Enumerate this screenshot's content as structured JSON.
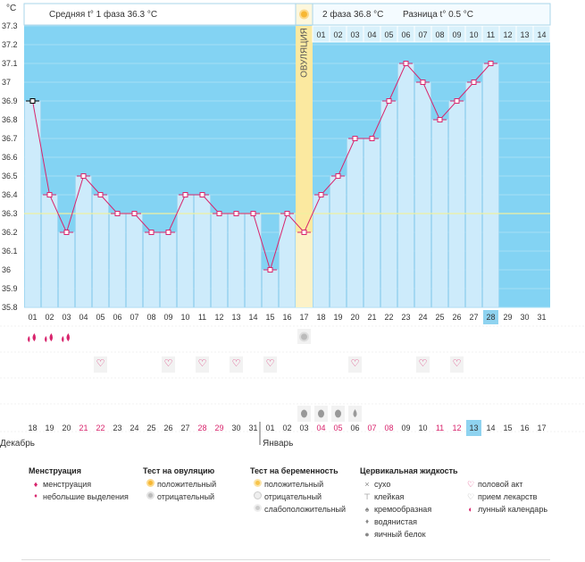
{
  "header": {
    "unit": "°C",
    "phase1_label": "Средняя t° 1 фаза",
    "phase1_avg": "36.3 °C",
    "phase2_label": "2 фаза",
    "phase2_avg": "36.8 °C",
    "diff_label": "Разница t°",
    "diff_value": "0.5 °C"
  },
  "ovulation_label": "ОВУЛЯЦИЯ",
  "month_left": "Декабрь",
  "month_right": "Январь",
  "colors": {
    "dark_bg": "#83d3f3",
    "bar": "#cdebfb",
    "bar_edge": "#9fd2ee",
    "line": "#d8246c",
    "ovulation": "#fbe9a0",
    "coverline": "#f0f0a0",
    "highlight": "#8fd3f0",
    "red_text": "#d8246c"
  },
  "chart_data": {
    "type": "line",
    "title": "",
    "ylabel": "°C",
    "ylim": [
      35.8,
      37.3
    ],
    "yticks": [
      "37.3",
      "37.2",
      "37.1",
      "37",
      "36.9",
      "36.8",
      "36.7",
      "36.6",
      "36.5",
      "36.4",
      "36.3",
      "36.2",
      "36.1",
      "36",
      "35.9",
      "35.8"
    ],
    "cycle_days": [
      "01",
      "02",
      "03",
      "04",
      "05",
      "06",
      "07",
      "08",
      "09",
      "10",
      "11",
      "12",
      "13",
      "14",
      "15",
      "16",
      "17",
      "18",
      "19",
      "20",
      "21",
      "22",
      "23",
      "24",
      "25",
      "26",
      "27",
      "28",
      "29",
      "30",
      "31"
    ],
    "temperatures": [
      36.9,
      36.4,
      36.2,
      36.5,
      36.4,
      36.3,
      36.3,
      36.2,
      36.2,
      36.4,
      36.4,
      36.3,
      36.3,
      36.3,
      36.0,
      36.3,
      36.2,
      36.4,
      36.5,
      36.7,
      36.7,
      36.9,
      37.1,
      37.0,
      36.8,
      36.9,
      37.0,
      37.1,
      null,
      null,
      null
    ],
    "coverline": 36.3,
    "ovulation_day": 17,
    "phase2_day_numbers": [
      "01",
      "02",
      "03",
      "04",
      "05",
      "06",
      "07",
      "08",
      "09",
      "10",
      "11",
      "12",
      "13",
      "14"
    ],
    "calendar_dates": [
      "18",
      "19",
      "20",
      "21",
      "22",
      "23",
      "24",
      "25",
      "26",
      "27",
      "28",
      "29",
      "30",
      "31",
      "01",
      "02",
      "03",
      "04",
      "05",
      "06",
      "07",
      "08",
      "09",
      "10",
      "11",
      "12",
      "13",
      "14",
      "15",
      "16",
      "17"
    ],
    "weekend_dates_red": [
      3,
      4,
      10,
      11,
      17,
      18,
      20,
      21,
      24,
      25
    ],
    "current_day_index": 27,
    "current_date_index": 26
  },
  "markers": {
    "menstruation_full_days": [
      1,
      2,
      3
    ],
    "ovulation_test_negative_days": [
      17
    ],
    "intercourse_days": [
      5,
      9,
      11,
      13,
      15,
      20,
      24,
      26
    ],
    "egg_white_days": [
      17,
      18,
      19
    ],
    "watery_days": [
      20
    ]
  },
  "legend": {
    "menstruation": {
      "title": "Менструация",
      "items": [
        "менструация",
        "небольшие выделения"
      ]
    },
    "ovulation_test": {
      "title": "Тест на овуляцию",
      "items": [
        "положительный",
        "отрицательный"
      ]
    },
    "pregnancy_test": {
      "title": "Тест на беременность",
      "items": [
        "положительный",
        "отрицательный",
        "слабоположительный"
      ]
    },
    "cervical": {
      "title": "Цервикальная жидкость",
      "items": [
        "сухо",
        "клейкая",
        "кремообразная",
        "водянистая",
        "яичный белок"
      ]
    },
    "other": {
      "items": [
        "половой акт",
        "прием лекарств",
        "лунный календарь"
      ]
    }
  }
}
